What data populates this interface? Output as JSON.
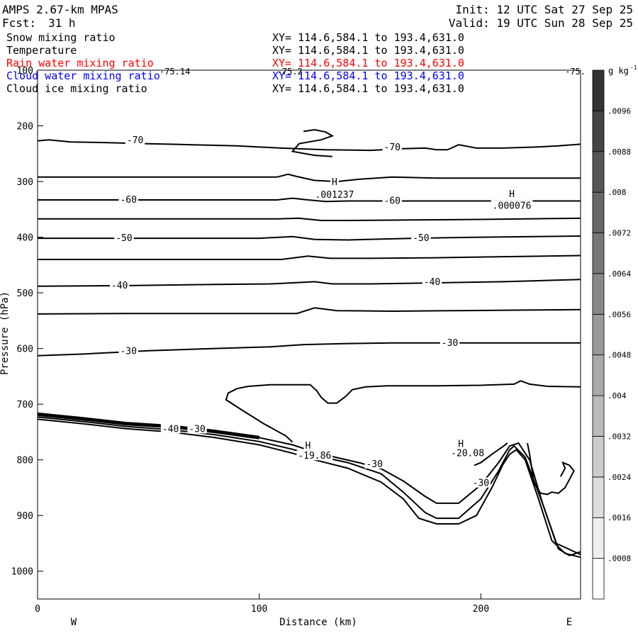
{
  "header": {
    "title": "AMPS 2.67-km MPAS",
    "fcst_label": "Fcst:",
    "fcst_value": "31 h",
    "init": "Init: 12 UTC Sat 27 Sep 25",
    "valid": "Valid: 19 UTC Sun 28 Sep 25"
  },
  "fields": [
    {
      "name": "Snow mixing ratio",
      "xy": "XY= 114.6,584.1 to 193.4,631.0",
      "color": "#000000"
    },
    {
      "name": "Temperature",
      "xy": "XY= 114.6,584.1 to 193.4,631.0",
      "color": "#000000"
    },
    {
      "name": "Rain water mixing ratio",
      "xy": "XY= 114.6,584.1 to 193.4,631.0",
      "color": "#ff0000"
    },
    {
      "name": "Cloud water mixing ratio",
      "xy": "XY= 114.6,584.1 to 193.4,631.0",
      "color": "#0000ff"
    },
    {
      "name": "Cloud ice mixing ratio",
      "xy": "XY= 114.6,584.1 to 193.4,631.0",
      "color": "#000000"
    }
  ],
  "chart_data": {
    "type": "contour-cross-section",
    "xlabel": "Distance (km)",
    "ylabel": "Pressure (hPa)",
    "xlim": [
      0,
      245
    ],
    "ylim": [
      1050,
      100
    ],
    "x_ticks": [
      0,
      100,
      200
    ],
    "y_ticks": [
      100,
      200,
      300,
      400,
      500,
      600,
      700,
      800,
      900,
      1000
    ],
    "left_end_label": "W",
    "right_end_label": "E",
    "colorbar": {
      "unit": "g kg",
      "unit_exp": "-1",
      "ticks": [
        ".0008",
        ".0016",
        ".0024",
        ".0032",
        ".004",
        ".0048",
        ".0056",
        ".0064",
        ".0072",
        ".008",
        ".0088",
        ".0096"
      ],
      "max": 0.0104
    },
    "isotherms": [
      {
        "label": "-70",
        "points": [
          [
            0,
            227
          ],
          [
            5,
            225
          ],
          [
            15,
            229
          ],
          [
            30,
            230
          ],
          [
            50,
            232
          ],
          [
            70,
            234
          ],
          [
            90,
            236
          ],
          [
            100,
            238
          ],
          [
            110,
            240
          ],
          [
            130,
            243
          ],
          [
            150,
            244
          ],
          [
            165,
            241
          ],
          [
            175,
            240
          ],
          [
            180,
            243
          ],
          [
            185,
            243
          ],
          [
            190,
            234
          ],
          [
            198,
            240
          ],
          [
            210,
            240
          ],
          [
            225,
            238
          ],
          [
            235,
            236
          ],
          [
            245,
            233
          ]
        ]
      },
      {
        "label": "",
        "points": [
          [
            0,
            292
          ],
          [
            20,
            292
          ],
          [
            50,
            292
          ],
          [
            90,
            292
          ],
          [
            108,
            292
          ],
          [
            113,
            287
          ],
          [
            117,
            291
          ],
          [
            125,
            298
          ],
          [
            135,
            300
          ],
          [
            145,
            296
          ],
          [
            160,
            292
          ],
          [
            180,
            294
          ],
          [
            200,
            294
          ],
          [
            220,
            294
          ],
          [
            245,
            294
          ]
        ]
      },
      {
        "label": "-60",
        "points": [
          [
            0,
            333
          ],
          [
            40,
            333
          ],
          [
            80,
            333
          ],
          [
            108,
            333
          ],
          [
            115,
            330
          ],
          [
            122,
            333
          ],
          [
            130,
            336
          ],
          [
            140,
            335
          ],
          [
            160,
            335
          ],
          [
            200,
            335
          ],
          [
            245,
            335
          ]
        ]
      },
      {
        "label": "",
        "points": [
          [
            0,
            367
          ],
          [
            60,
            367
          ],
          [
            108,
            367
          ],
          [
            118,
            366
          ],
          [
            128,
            370
          ],
          [
            140,
            370
          ],
          [
            170,
            369
          ],
          [
            200,
            368
          ],
          [
            245,
            366
          ]
        ]
      },
      {
        "label": "-50",
        "points": [
          [
            0,
            402
          ],
          [
            60,
            402
          ],
          [
            100,
            402
          ],
          [
            115,
            399
          ],
          [
            125,
            404
          ],
          [
            140,
            405
          ],
          [
            170,
            402
          ],
          [
            200,
            400
          ],
          [
            245,
            398
          ]
        ]
      },
      {
        "label": "",
        "points": [
          [
            0,
            440
          ],
          [
            60,
            440
          ],
          [
            100,
            440
          ],
          [
            110,
            440
          ],
          [
            122,
            434
          ],
          [
            132,
            438
          ],
          [
            150,
            438
          ],
          [
            180,
            437
          ],
          [
            210,
            435
          ],
          [
            245,
            433
          ]
        ]
      },
      {
        "label": "-40",
        "points": [
          [
            0,
            488
          ],
          [
            40,
            487
          ],
          [
            80,
            485
          ],
          [
            105,
            484
          ],
          [
            115,
            482
          ],
          [
            125,
            480
          ],
          [
            133,
            484
          ],
          [
            150,
            484
          ],
          [
            180,
            482
          ],
          [
            210,
            480
          ],
          [
            245,
            476
          ]
        ]
      },
      {
        "label": "",
        "points": [
          [
            0,
            538
          ],
          [
            40,
            537
          ],
          [
            80,
            537
          ],
          [
            110,
            537
          ],
          [
            117,
            537
          ],
          [
            125,
            527
          ],
          [
            135,
            532
          ],
          [
            160,
            533
          ],
          [
            190,
            532
          ],
          [
            220,
            531
          ],
          [
            245,
            530
          ]
        ]
      },
      {
        "label": "-30",
        "points": [
          [
            0,
            613
          ],
          [
            20,
            610
          ],
          [
            50,
            604
          ],
          [
            80,
            600
          ],
          [
            105,
            597
          ],
          [
            120,
            593
          ],
          [
            140,
            591
          ],
          [
            160,
            590
          ],
          [
            180,
            590
          ],
          [
            210,
            590
          ],
          [
            245,
            590
          ]
        ]
      }
    ],
    "loop_contour": [
      [
        90,
        672
      ],
      [
        95,
        668
      ],
      [
        105,
        665
      ],
      [
        115,
        665
      ],
      [
        123,
        665
      ],
      [
        126,
        676
      ],
      [
        128,
        688
      ],
      [
        131,
        698
      ],
      [
        135,
        698
      ],
      [
        139,
        686
      ],
      [
        142,
        674
      ],
      [
        148,
        669
      ],
      [
        158,
        667
      ],
      [
        180,
        667
      ],
      [
        200,
        666
      ],
      [
        215,
        664
      ],
      [
        218,
        658
      ],
      [
        222,
        664
      ],
      [
        230,
        668
      ],
      [
        245,
        669
      ],
      [
        245,
        669
      ]
    ],
    "loop_left_arc": [
      [
        90,
        672
      ],
      [
        86,
        680
      ],
      [
        85,
        692
      ],
      [
        92,
        710
      ],
      [
        102,
        735
      ],
      [
        112,
        757
      ],
      [
        115,
        768
      ]
    ],
    "top_hook": [
      [
        120,
        210
      ],
      [
        125,
        207
      ],
      [
        130,
        211
      ],
      [
        133,
        218
      ],
      [
        128,
        225
      ],
      [
        118,
        232
      ],
      [
        115,
        246
      ],
      [
        125,
        253
      ],
      [
        133,
        255
      ]
    ],
    "terrain": [
      [
        [
          0,
          718
        ],
        [
          20,
          726
        ],
        [
          40,
          735
        ],
        [
          60,
          740
        ],
        [
          80,
          749
        ],
        [
          100,
          760
        ],
        [
          115,
          773
        ],
        [
          125,
          786
        ],
        [
          135,
          796
        ],
        [
          145,
          805
        ],
        [
          155,
          816
        ],
        [
          165,
          838
        ],
        [
          175,
          866
        ],
        [
          180,
          878
        ],
        [
          190,
          878
        ],
        [
          200,
          845
        ],
        [
          208,
          805
        ],
        [
          213,
          775
        ],
        [
          217,
          770
        ],
        [
          222,
          800
        ],
        [
          228,
          880
        ],
        [
          234,
          950
        ],
        [
          245,
          970
        ]
      ],
      [
        [
          0,
          723
        ],
        [
          20,
          731
        ],
        [
          40,
          740
        ],
        [
          60,
          746
        ],
        [
          80,
          755
        ],
        [
          100,
          767
        ],
        [
          115,
          781
        ],
        [
          125,
          792
        ],
        [
          140,
          805
        ],
        [
          155,
          825
        ],
        [
          165,
          858
        ],
        [
          175,
          895
        ],
        [
          180,
          905
        ],
        [
          190,
          905
        ],
        [
          200,
          870
        ],
        [
          208,
          820
        ],
        [
          213,
          782
        ],
        [
          215,
          775
        ],
        [
          220,
          795
        ],
        [
          228,
          880
        ],
        [
          235,
          960
        ],
        [
          240,
          972
        ],
        [
          245,
          965
        ]
      ],
      [
        [
          0,
          727
        ],
        [
          20,
          735
        ],
        [
          40,
          744
        ],
        [
          60,
          750
        ],
        [
          80,
          760
        ],
        [
          100,
          773
        ],
        [
          115,
          788
        ],
        [
          125,
          800
        ],
        [
          140,
          815
        ],
        [
          155,
          840
        ],
        [
          165,
          870
        ],
        [
          172,
          905
        ],
        [
          180,
          915
        ],
        [
          190,
          915
        ],
        [
          198,
          900
        ],
        [
          205,
          850
        ],
        [
          210,
          808
        ],
        [
          213,
          790
        ],
        [
          216,
          782
        ],
        [
          220,
          800
        ],
        [
          226,
          870
        ],
        [
          232,
          945
        ],
        [
          238,
          968
        ],
        [
          245,
          975
        ]
      ]
    ],
    "right_squiggles": [
      [
        [
          221,
          770
        ],
        [
          222,
          790
        ],
        [
          224,
          842
        ],
        [
          227,
          860
        ],
        [
          230,
          862
        ],
        [
          232,
          858
        ],
        [
          235,
          860
        ],
        [
          238,
          850
        ],
        [
          240,
          835
        ],
        [
          242,
          820
        ],
        [
          240,
          810
        ],
        [
          237,
          805
        ],
        [
          238,
          815
        ],
        [
          236,
          830
        ]
      ],
      [
        [
          197,
          810
        ],
        [
          200,
          805
        ],
        [
          205,
          790
        ],
        [
          210,
          776
        ],
        [
          212,
          770
        ]
      ]
    ],
    "annotations": [
      {
        "text": "-70",
        "x": 44,
        "y": 226
      },
      {
        "text": "-70",
        "x": 160,
        "y": 239
      },
      {
        "text": "-60",
        "x": 41,
        "y": 333
      },
      {
        "text": "-60",
        "x": 160,
        "y": 335
      },
      {
        "text": "-50",
        "x": 39,
        "y": 402
      },
      {
        "text": "-50",
        "x": 173,
        "y": 402
      },
      {
        "text": "-40",
        "x": 37,
        "y": 487
      },
      {
        "text": "-40",
        "x": 178,
        "y": 481
      },
      {
        "text": "-30",
        "x": 41,
        "y": 605
      },
      {
        "text": "-30",
        "x": 186,
        "y": 590
      },
      {
        "text": "-40",
        "x": 60,
        "y": 745
      },
      {
        "text": "-30",
        "x": 72,
        "y": 745
      },
      {
        "text": "-30",
        "x": 152,
        "y": 808
      },
      {
        "text": "-30",
        "x": 200,
        "y": 842
      },
      {
        "text": "H",
        "x": 134,
        "y": 301
      },
      {
        "text": ".001237",
        "x": 134,
        "y": 324
      },
      {
        "text": "H",
        "x": 214,
        "y": 323
      },
      {
        "text": ".000076",
        "x": 214,
        "y": 344
      },
      {
        "text": "H",
        "x": 122,
        "y": 775
      },
      {
        "text": "-19.86",
        "x": 125,
        "y": 793
      },
      {
        "text": "H",
        "x": 191,
        "y": 772
      },
      {
        "text": "-20.08",
        "x": 194,
        "y": 788
      }
    ],
    "top_clip_labels": [
      {
        "text": "-75.14",
        "x": 55,
        "y": 100
      },
      {
        "text": "-75.2",
        "x": 108,
        "y": 100
      },
      {
        "text": "-75.",
        "x": 238,
        "y": 100
      }
    ]
  }
}
